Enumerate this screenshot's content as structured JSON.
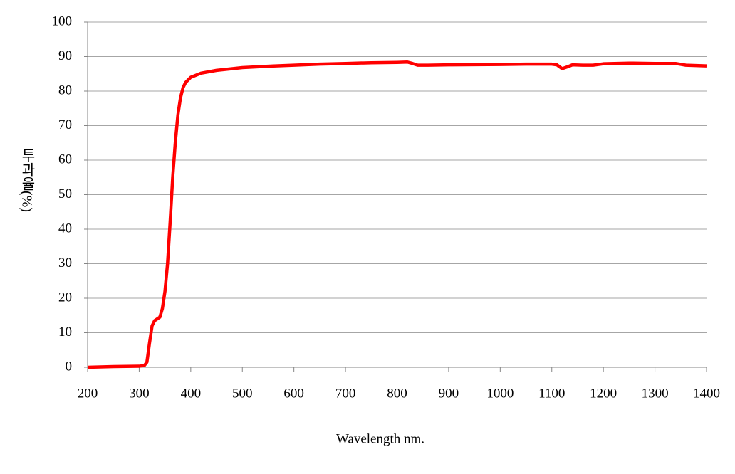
{
  "chart_data": {
    "type": "line",
    "x_label": "Wavelength nm.",
    "y_label": "투과율(%)",
    "x": [
      200,
      250,
      300,
      310,
      315,
      320,
      325,
      330,
      340,
      345,
      350,
      355,
      360,
      365,
      370,
      375,
      380,
      385,
      390,
      400,
      420,
      450,
      500,
      550,
      600,
      650,
      700,
      750,
      800,
      820,
      830,
      840,
      860,
      900,
      1000,
      1050,
      1100,
      1110,
      1120,
      1130,
      1140,
      1160,
      1180,
      1200,
      1250,
      1300,
      1340,
      1360,
      1400
    ],
    "series": [
      {
        "color": "#ff0000",
        "values": [
          0,
          0.2,
          0.3,
          0.5,
          1.5,
          7,
          12,
          13.5,
          14.5,
          17,
          22,
          30,
          42,
          55,
          65,
          73,
          78,
          81,
          82.5,
          84,
          85.2,
          86,
          86.8,
          87.2,
          87.5,
          87.8,
          88,
          88.2,
          88.3,
          88.4,
          88,
          87.5,
          87.5,
          87.6,
          87.7,
          87.8,
          87.8,
          87.6,
          86.5,
          87,
          87.6,
          87.5,
          87.5,
          87.9,
          88.1,
          88,
          88,
          87.5,
          87.3
        ]
      }
    ],
    "xlim": [
      200,
      1400
    ],
    "xticks": [
      200,
      300,
      400,
      500,
      600,
      700,
      800,
      900,
      1000,
      1100,
      1200,
      1300,
      1400
    ],
    "ylim": [
      0,
      100
    ],
    "yticks": [
      0,
      10,
      20,
      30,
      40,
      50,
      60,
      70,
      80,
      90,
      100
    ],
    "grid": true
  }
}
